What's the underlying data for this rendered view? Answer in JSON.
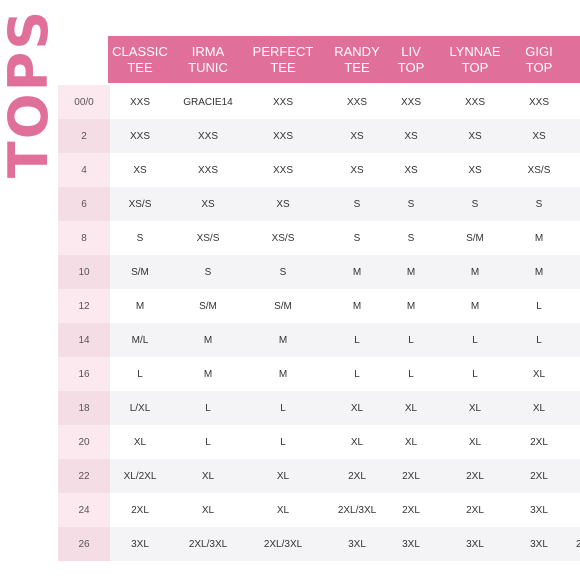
{
  "title": "TOPS",
  "colors": {
    "accent": "#e0709a",
    "size_col_light": "#fce8ef",
    "size_col_dark": "#f5dde6",
    "row_alt": "#f4f3f5"
  },
  "columns": [
    {
      "line1": "CLASSIC",
      "line2": "TEE"
    },
    {
      "line1": "IRMA",
      "line2": "TUNIC"
    },
    {
      "line1": "PERFECT",
      "line2": "TEE"
    },
    {
      "line1": "RANDY",
      "line2": "TEE"
    },
    {
      "line1": "LIV",
      "line2": "TOP"
    },
    {
      "line1": "LYNNAE",
      "line2": "TOP"
    },
    {
      "line1": "GIGI",
      "line2": "TOP"
    }
  ],
  "rows": [
    {
      "size": "00/0",
      "values": [
        "XXS",
        "GRACIE14",
        "XXS",
        "XXS",
        "XXS",
        "XXS",
        "XXS"
      ]
    },
    {
      "size": "2",
      "values": [
        "XXS",
        "XXS",
        "XXS",
        "XS",
        "XS",
        "XS",
        "XS"
      ]
    },
    {
      "size": "4",
      "values": [
        "XS",
        "XXS",
        "XXS",
        "XS",
        "XS",
        "XS",
        "XS/S"
      ]
    },
    {
      "size": "6",
      "values": [
        "XS/S",
        "XS",
        "XS",
        "S",
        "S",
        "S",
        "S"
      ]
    },
    {
      "size": "8",
      "values": [
        "S",
        "XS/S",
        "XS/S",
        "S",
        "S",
        "S/M",
        "M"
      ]
    },
    {
      "size": "10",
      "values": [
        "S/M",
        "S",
        "S",
        "M",
        "M",
        "M",
        "M"
      ]
    },
    {
      "size": "12",
      "values": [
        "M",
        "S/M",
        "S/M",
        "M",
        "M",
        "M",
        "L"
      ]
    },
    {
      "size": "14",
      "values": [
        "M/L",
        "M",
        "M",
        "L",
        "L",
        "L",
        "L"
      ]
    },
    {
      "size": "16",
      "values": [
        "L",
        "M",
        "M",
        "L",
        "L",
        "L",
        "XL"
      ]
    },
    {
      "size": "18",
      "values": [
        "L/XL",
        "L",
        "L",
        "XL",
        "XL",
        "XL",
        "XL"
      ]
    },
    {
      "size": "20",
      "values": [
        "XL",
        "L",
        "L",
        "XL",
        "XL",
        "XL",
        "2XL"
      ]
    },
    {
      "size": "22",
      "values": [
        "XL/2XL",
        "XL",
        "XL",
        "2XL",
        "2XL",
        "2XL",
        "2XL"
      ]
    },
    {
      "size": "24",
      "values": [
        "2XL",
        "XL",
        "XL",
        "2XL/3XL",
        "2XL",
        "2XL",
        "3XL"
      ]
    },
    {
      "size": "26",
      "values": [
        "3XL",
        "2XL/3XL",
        "2XL/3XL",
        "3XL",
        "3XL",
        "3XL",
        "3XL"
      ]
    }
  ],
  "clipped_partial_text": "2"
}
